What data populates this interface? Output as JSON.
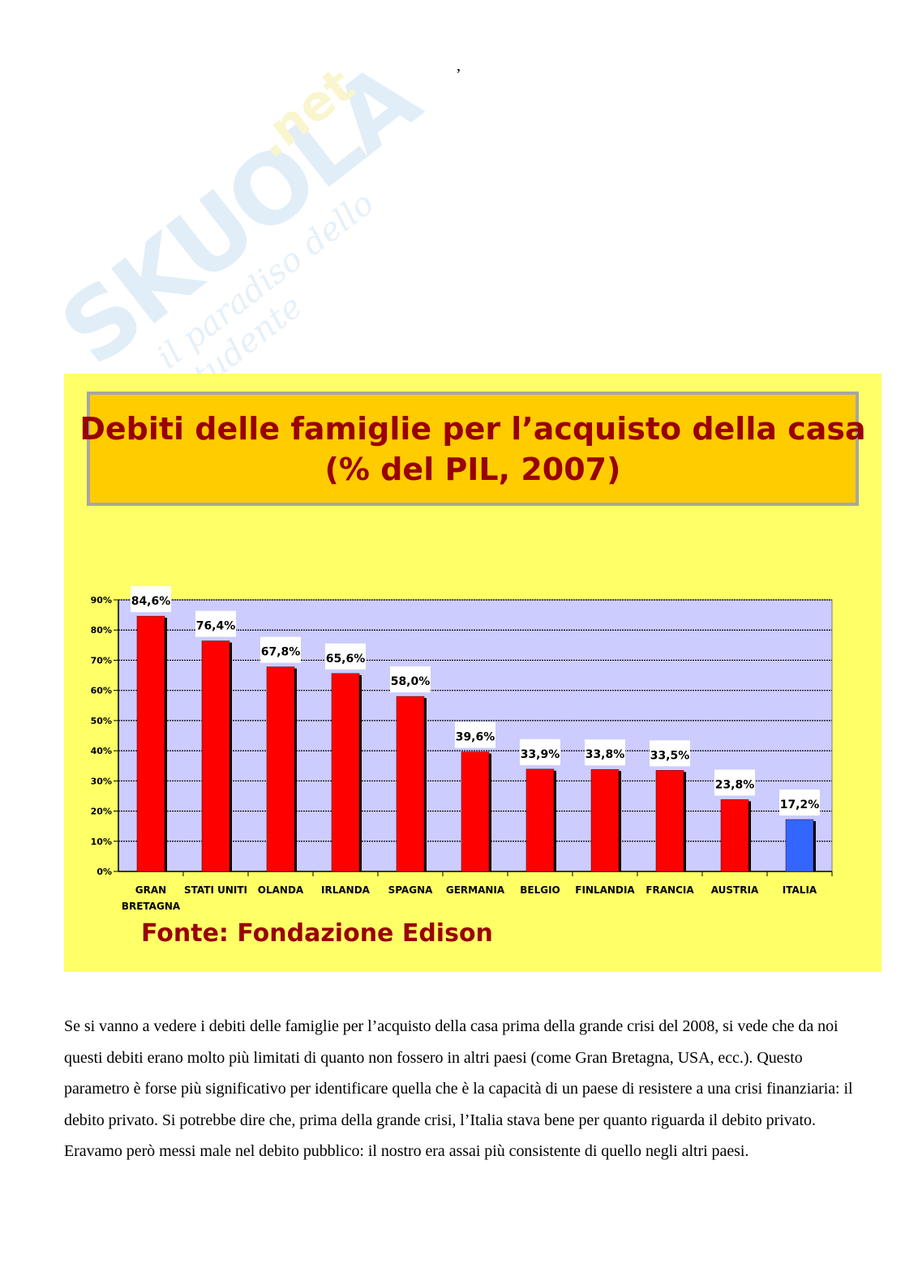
{
  "stray_mark": ",",
  "watermark": {
    "brand": "SKUOLA",
    "domain": ".net",
    "tagline": "il paradiso dello studente"
  },
  "colors": {
    "panel": "#ffff66",
    "title_bg": "#ffcc00",
    "title_text": "#990000",
    "plot_bg": "#ccccff",
    "bar_default": "#ff0000",
    "bar_highlight": "#3366ff"
  },
  "chart_data": {
    "type": "bar",
    "title": "Debiti delle famiglie per l’acquisto della casa",
    "subtitle": "(% del PIL, 2007)",
    "categories": [
      "GRAN BRETAGNA",
      "STATI UNITI",
      "OLANDA",
      "IRLANDA",
      "SPAGNA",
      "GERMANIA",
      "BELGIO",
      "FINLANDIA",
      "FRANCIA",
      "AUSTRIA",
      "ITALIA"
    ],
    "values": [
      84.6,
      76.4,
      67.8,
      65.6,
      58.0,
      39.6,
      33.9,
      33.8,
      33.5,
      23.8,
      17.2
    ],
    "value_labels": [
      "84,6%",
      "76,4%",
      "67,8%",
      "65,6%",
      "58,0%",
      "39,6%",
      "33,9%",
      "33,8%",
      "33,5%",
      "23,8%",
      "17,2%"
    ],
    "highlight": "ITALIA",
    "yticks": [
      "0%",
      "10%",
      "20%",
      "30%",
      "40%",
      "50%",
      "60%",
      "70%",
      "80%",
      "90%"
    ],
    "ylim": [
      0,
      90
    ],
    "grid": true,
    "legend": "none"
  },
  "source": "Fonte: Fondazione Edison",
  "paragraph": "Se si vanno a vedere i debiti delle famiglie per l’acquisto della casa prima della grande crisi del 2008, si vede che da noi questi debiti erano molto più limitati di quanto non fossero in altri paesi (come Gran Bretagna, USA, ecc.). Questo parametro è forse più significativo per identificare quella che è la capacità di un paese di resistere a una crisi finanziaria: il debito privato. Si potrebbe dire che, prima della grande crisi, l’Italia stava bene per quanto riguarda il debito privato. Eravamo però messi male nel debito pubblico: il nostro era assai più consistente di quello negli altri paesi."
}
